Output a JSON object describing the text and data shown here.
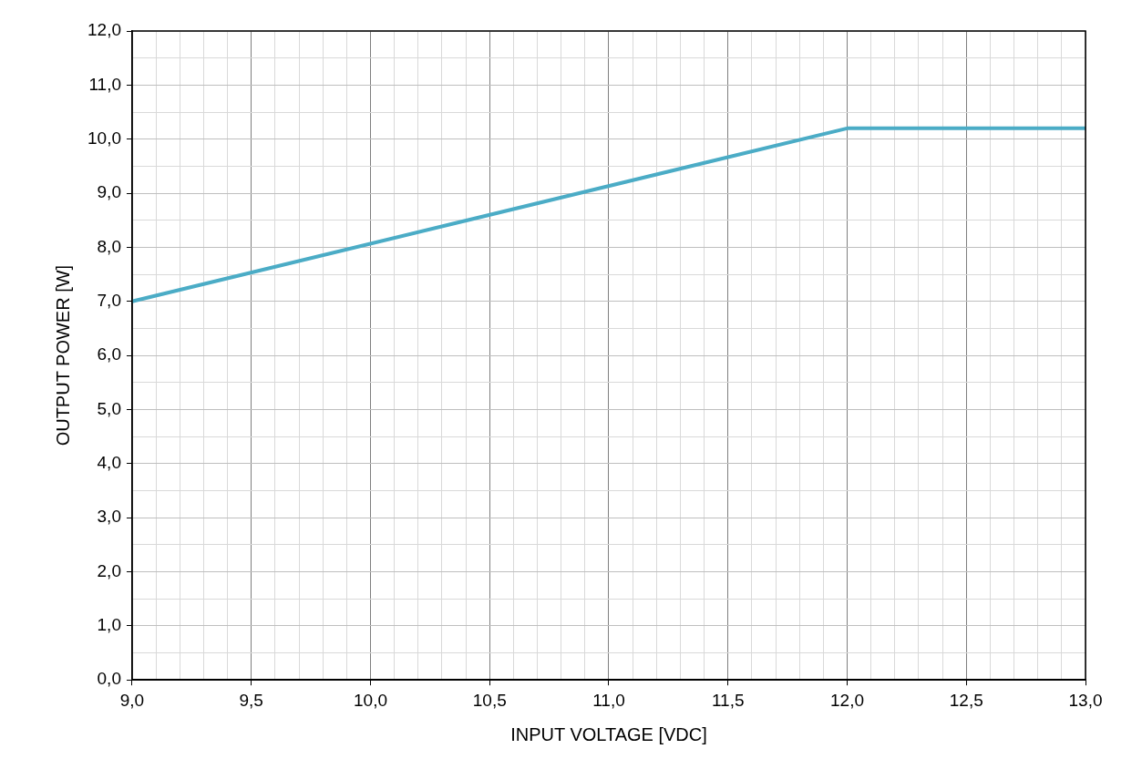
{
  "chart_data": {
    "type": "line",
    "xlabel": "INPUT VOLTAGE [VDC]",
    "ylabel": "OUTPUT POWER [W]",
    "x": [
      9,
      12,
      13
    ],
    "series": [
      {
        "color": "#4bacc6",
        "values": [
          7.0,
          10.2,
          10.2
        ]
      }
    ],
    "xlim": [
      9,
      13
    ],
    "xticks": [
      {
        "value": 9,
        "label": "9,0"
      },
      {
        "value": 9.1,
        "label": null
      },
      {
        "value": 9.2,
        "label": null
      },
      {
        "value": 9.3,
        "label": null
      },
      {
        "value": 9.4,
        "label": null
      },
      {
        "value": 9.5,
        "label": "9,5"
      },
      {
        "value": 9.6,
        "label": null
      },
      {
        "value": 9.7,
        "label": null
      },
      {
        "value": 9.8,
        "label": null
      },
      {
        "value": 9.9,
        "label": null
      },
      {
        "value": 10,
        "label": "10,0"
      },
      {
        "value": 10.1,
        "label": null
      },
      {
        "value": 10.2,
        "label": null
      },
      {
        "value": 10.3,
        "label": null
      },
      {
        "value": 10.4,
        "label": null
      },
      {
        "value": 10.5,
        "label": "10,5"
      },
      {
        "value": 10.6,
        "label": null
      },
      {
        "value": 10.7,
        "label": null
      },
      {
        "value": 10.8,
        "label": null
      },
      {
        "value": 10.9,
        "label": null
      },
      {
        "value": 11,
        "label": "11,0"
      },
      {
        "value": 11.1,
        "label": null
      },
      {
        "value": 11.2,
        "label": null
      },
      {
        "value": 11.3,
        "label": null
      },
      {
        "value": 11.4,
        "label": null
      },
      {
        "value": 11.5,
        "label": "11,5"
      },
      {
        "value": 11.6,
        "label": null
      },
      {
        "value": 11.7,
        "label": null
      },
      {
        "value": 11.8,
        "label": null
      },
      {
        "value": 11.9,
        "label": null
      },
      {
        "value": 12,
        "label": "12,0"
      },
      {
        "value": 12.1,
        "label": null
      },
      {
        "value": 12.2,
        "label": null
      },
      {
        "value": 12.3,
        "label": null
      },
      {
        "value": 12.4,
        "label": null
      },
      {
        "value": 12.5,
        "label": "12,5"
      },
      {
        "value": 12.6,
        "label": null
      },
      {
        "value": 12.7,
        "label": null
      },
      {
        "value": 12.8,
        "label": null
      },
      {
        "value": 12.9,
        "label": null
      },
      {
        "value": 13,
        "label": "13,0"
      }
    ],
    "ylim": [
      0,
      12
    ],
    "yticks": [
      {
        "value": 0,
        "label": "0,0"
      },
      {
        "value": 0.5,
        "label": null
      },
      {
        "value": 1,
        "label": "1,0"
      },
      {
        "value": 1.5,
        "label": null
      },
      {
        "value": 2,
        "label": "2,0"
      },
      {
        "value": 2.5,
        "label": null
      },
      {
        "value": 3,
        "label": "3,0"
      },
      {
        "value": 3.5,
        "label": null
      },
      {
        "value": 4,
        "label": "4,0"
      },
      {
        "value": 4.5,
        "label": null
      },
      {
        "value": 5,
        "label": "5,0"
      },
      {
        "value": 5.5,
        "label": null
      },
      {
        "value": 6,
        "label": "6,0"
      },
      {
        "value": 6.5,
        "label": null
      },
      {
        "value": 7,
        "label": "7,0"
      },
      {
        "value": 7.5,
        "label": null
      },
      {
        "value": 8,
        "label": "8,0"
      },
      {
        "value": 8.5,
        "label": null
      },
      {
        "value": 9,
        "label": "9,0"
      },
      {
        "value": 9.5,
        "label": null
      },
      {
        "value": 10,
        "label": "10,0"
      },
      {
        "value": 10.5,
        "label": null
      },
      {
        "value": 11,
        "label": "11,0"
      },
      {
        "value": 11.5,
        "label": null
      },
      {
        "value": 12,
        "label": "12,0"
      }
    ],
    "grid": true,
    "legend": false,
    "marker": "none",
    "line_style": "solid"
  }
}
